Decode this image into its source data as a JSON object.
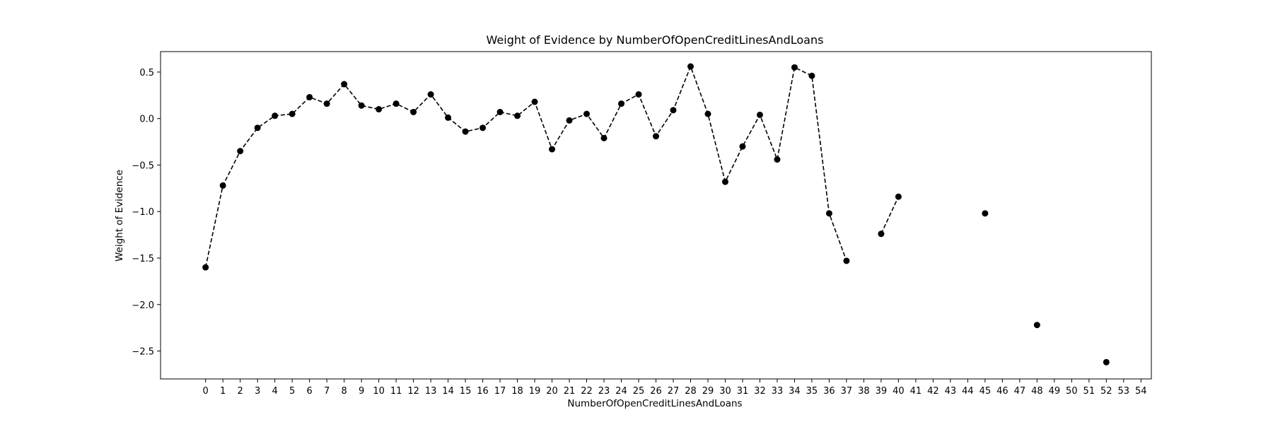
{
  "chart_data": {
    "type": "line",
    "title": "Weight of Evidence by NumberOfOpenCreditLinesAndLoans",
    "xlabel": "NumberOfOpenCreditLinesAndLoans",
    "ylabel": "Weight of Evidence",
    "categories": [
      "0",
      "1",
      "2",
      "3",
      "4",
      "5",
      "6",
      "7",
      "8",
      "9",
      "10",
      "11",
      "12",
      "13",
      "14",
      "15",
      "16",
      "17",
      "18",
      "19",
      "20",
      "21",
      "22",
      "23",
      "24",
      "25",
      "26",
      "27",
      "28",
      "29",
      "30",
      "31",
      "32",
      "33",
      "34",
      "35",
      "36",
      "37",
      "38",
      "39",
      "40",
      "41",
      "42",
      "43",
      "44",
      "45",
      "46",
      "47",
      "48",
      "49",
      "50",
      "51",
      "52",
      "53",
      "54"
    ],
    "xlim": [
      -2.6,
      54.6
    ],
    "ylim": [
      -2.8,
      0.72
    ],
    "yticks": [
      0.5,
      0.0,
      -0.5,
      -1.0,
      -1.5,
      -2.0,
      -2.5
    ],
    "ytick_labels": [
      "0.5",
      "0.0",
      "−0.5",
      "−1.0",
      "−1.5",
      "−2.0",
      "−2.5"
    ],
    "grid": false,
    "line_style": "dashed",
    "marker": "circle",
    "color": "#000000",
    "series": [
      {
        "values": [
          -1.6,
          -0.72,
          -0.35,
          -0.1,
          0.03,
          0.05,
          0.23,
          0.16,
          0.37,
          0.14,
          0.1,
          0.16,
          0.07,
          0.26,
          0.01,
          -0.14,
          -0.1,
          0.07,
          0.03,
          0.18,
          -0.33,
          -0.02,
          0.05,
          -0.21,
          0.16,
          0.26,
          -0.19,
          0.09,
          0.56,
          0.05,
          -0.68,
          -0.3,
          0.04,
          -0.44,
          0.55,
          0.46,
          -1.02,
          -1.53,
          null,
          -1.24,
          -0.84,
          null,
          null,
          null,
          null,
          -1.02,
          null,
          null,
          -2.22,
          null,
          null,
          null,
          -2.62,
          null,
          null
        ]
      }
    ]
  }
}
